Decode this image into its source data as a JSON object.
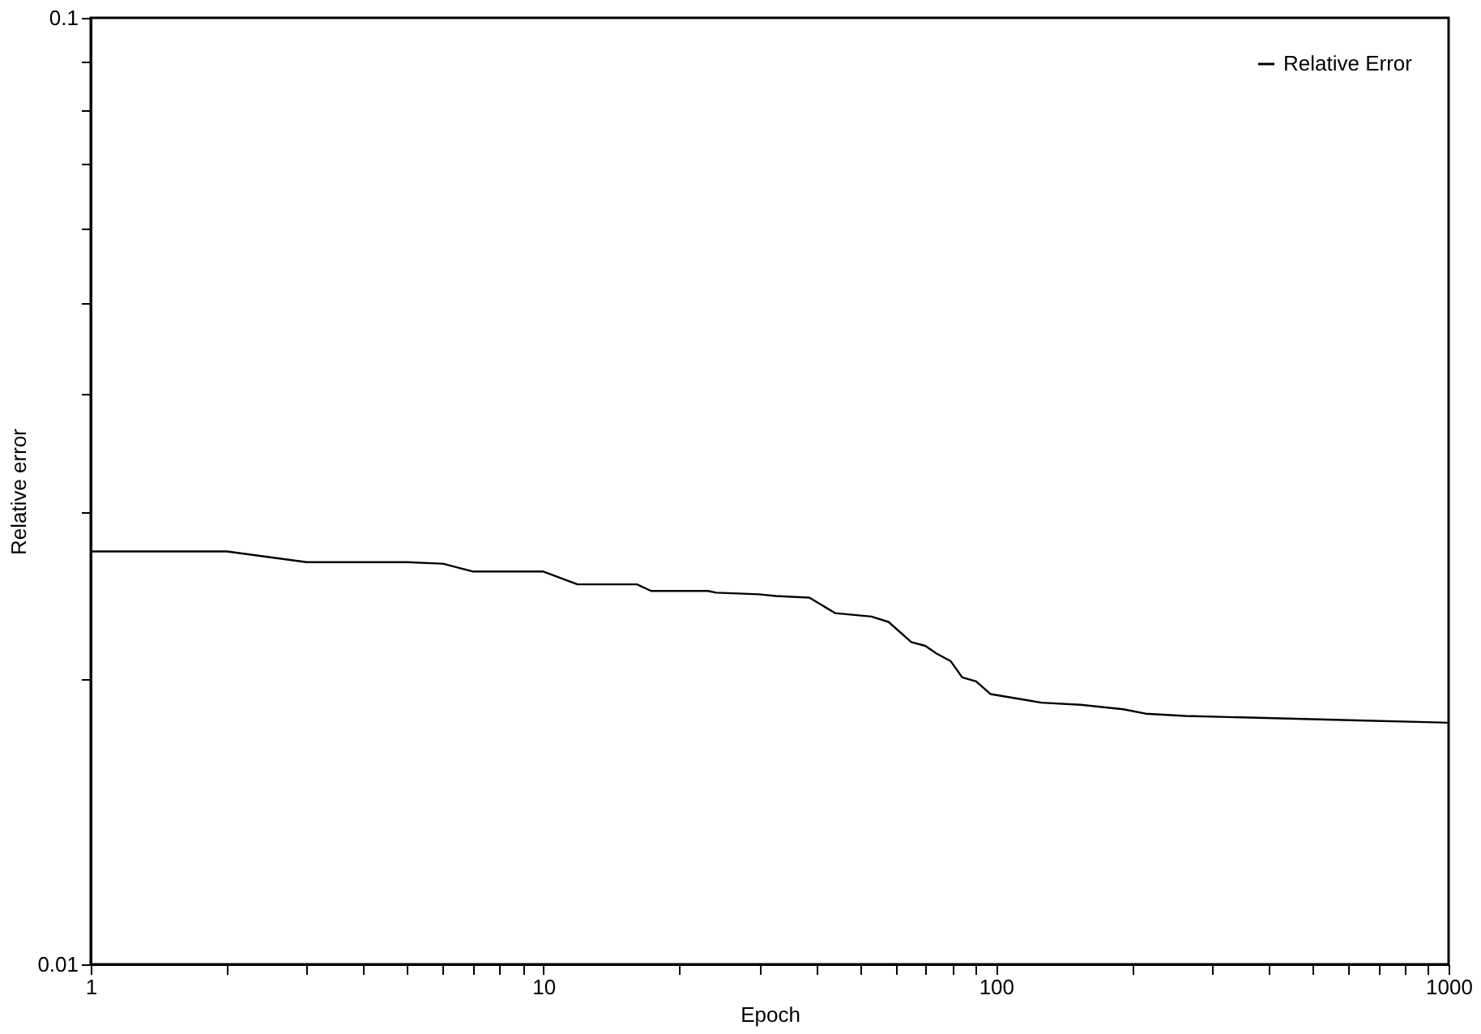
{
  "chart_data": {
    "type": "line",
    "xlabel": "Epoch",
    "ylabel": "Relative error",
    "log": "xy",
    "grid": false,
    "legend": "top right",
    "marker": "none",
    "line_style": "solid",
    "xlim": [
      1,
      1000
    ],
    "ylim": [
      0.01,
      0.1
    ],
    "xticks": [
      1,
      {
        "value": 2,
        "label": null
      },
      {
        "value": 3,
        "label": null
      },
      {
        "value": 4,
        "label": null
      },
      {
        "value": 5,
        "label": null
      },
      {
        "value": 6,
        "label": null
      },
      {
        "value": 7,
        "label": null
      },
      {
        "value": 8,
        "label": null
      },
      {
        "value": 9,
        "label": null
      },
      10,
      {
        "value": 20,
        "label": null
      },
      {
        "value": 30,
        "label": null
      },
      {
        "value": 40,
        "label": null
      },
      {
        "value": 50,
        "label": null
      },
      {
        "value": 60,
        "label": null
      },
      {
        "value": 70,
        "label": null
      },
      {
        "value": 80,
        "label": null
      },
      {
        "value": 90,
        "label": null
      },
      100,
      {
        "value": 200,
        "label": null
      },
      {
        "value": 300,
        "label": null
      },
      {
        "value": 400,
        "label": null
      },
      {
        "value": 500,
        "label": null
      },
      {
        "value": 600,
        "label": null
      },
      {
        "value": 700,
        "label": null
      },
      {
        "value": 800,
        "label": null
      },
      {
        "value": 900,
        "label": null
      },
      1000
    ],
    "yticks": [
      0.01,
      {
        "value": 0.02,
        "label": null
      },
      {
        "value": 0.03,
        "label": null
      },
      {
        "value": 0.04,
        "label": null
      },
      {
        "value": 0.05,
        "label": null
      },
      {
        "value": 0.06,
        "label": null
      },
      {
        "value": 0.07,
        "label": null
      },
      {
        "value": 0.08,
        "label": null
      },
      {
        "value": 0.09,
        "label": null
      },
      0.1
    ],
    "series": [
      {
        "name": "Relative Error",
        "color": "#000000",
        "x": [
          1,
          2,
          3,
          5,
          6,
          7,
          10,
          11.9,
          13,
          16.1,
          17.3,
          23.1,
          24.1,
          29.9,
          32.6,
          38.7,
          44.1,
          53.1,
          57.9,
          65,
          69.8,
          73.9,
          79.5,
          84.2,
          90.4,
          97.2,
          110.6,
          126,
          154,
          191,
          214,
          262,
          409,
          630,
          1000
        ],
        "values": [
          0.0273,
          0.0273,
          0.0266,
          0.0266,
          0.0265,
          0.026,
          0.026,
          0.0252,
          0.0252,
          0.0252,
          0.0248,
          0.0248,
          0.0247,
          0.0246,
          0.0245,
          0.0244,
          0.0235,
          0.0233,
          0.023,
          0.0219,
          0.0217,
          0.0213,
          0.0209,
          0.0201,
          0.0199,
          0.0193,
          0.0191,
          0.0189,
          0.0188,
          0.0186,
          0.0184,
          0.0183,
          0.0182,
          0.0181,
          0.018
        ]
      }
    ]
  }
}
